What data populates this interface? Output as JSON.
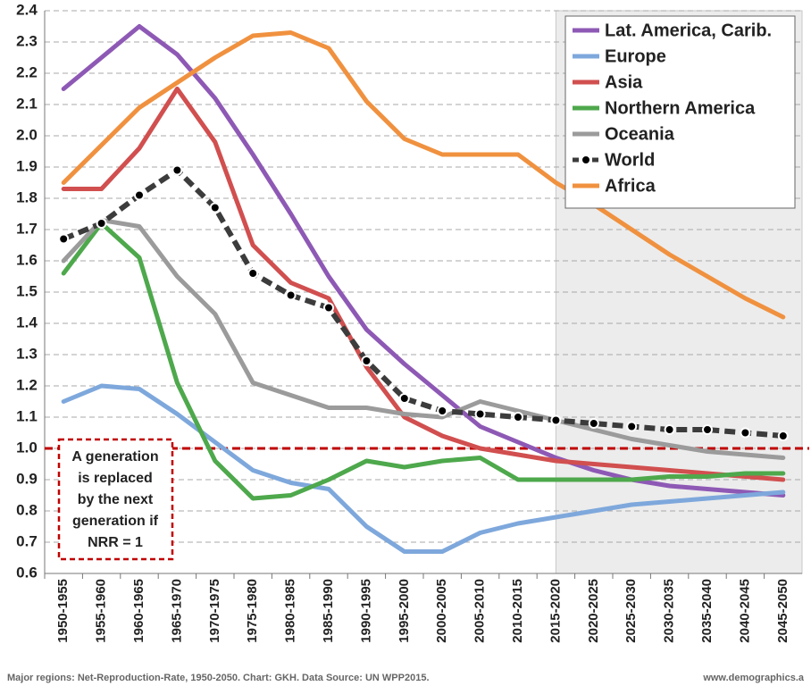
{
  "chart_data": {
    "type": "line",
    "categories": [
      "1950-1955",
      "1955-1960",
      "1960-1965",
      "1965-1970",
      "1970-1975",
      "1975-1980",
      "1980-1985",
      "1985-1990",
      "1990-1995",
      "1995-2000",
      "2000-2005",
      "2005-2010",
      "2010-2015",
      "2015-2020",
      "2020-2025",
      "2025-2030",
      "2030-2035",
      "2035-2040",
      "2040-2045",
      "2045-2050"
    ],
    "ylim": [
      0.6,
      2.4
    ],
    "yticks": [
      0.6,
      0.7,
      0.8,
      0.9,
      {
        "value": 1,
        "label": "1.0"
      },
      1.1,
      1.2,
      1.3,
      1.4,
      1.5,
      1.6,
      1.7,
      1.8,
      1.9,
      {
        "value": 2,
        "label": "2.0"
      },
      2.1,
      2.2,
      2.3,
      2.4
    ],
    "grid": true,
    "legend": "top-right",
    "reference_line": {
      "value": 1,
      "color": "#c00000"
    },
    "annotation": [
      "A generation",
      "is replaced",
      "by the next",
      "generation if",
      "NRR = 1"
    ],
    "footer": "Major regions: Net-Reproduction-Rate, 1950-2050. Chart: GKH. Data Source: UN WPP2015.",
    "source": "www.demographics.a",
    "series": [
      {
        "name": "Lat. America, Carib.",
        "color": "#8e59b5",
        "values": [
          2.15,
          2.25,
          2.35,
          2.26,
          2.12,
          1.94,
          1.75,
          1.55,
          1.38,
          1.27,
          1.17,
          1.07,
          1.02,
          0.97,
          0.93,
          0.9,
          0.88,
          0.87,
          0.86,
          0.85
        ]
      },
      {
        "name": "Europe",
        "color": "#7ea8dc",
        "values": [
          1.15,
          1.2,
          1.19,
          1.11,
          1.02,
          0.93,
          0.89,
          0.87,
          0.75,
          0.67,
          0.67,
          0.73,
          0.76,
          0.78,
          0.8,
          0.82,
          0.83,
          0.84,
          0.85,
          0.86
        ]
      },
      {
        "name": "Asia",
        "color": "#d14f4f",
        "values": [
          1.83,
          1.83,
          1.96,
          2.15,
          1.98,
          1.65,
          1.53,
          1.48,
          1.26,
          1.1,
          1.04,
          1.0,
          0.98,
          0.96,
          0.95,
          0.94,
          0.93,
          0.92,
          0.91,
          0.9
        ]
      },
      {
        "name": "Northern America",
        "color": "#4ea84c",
        "values": [
          1.56,
          1.72,
          1.61,
          1.21,
          0.96,
          0.84,
          0.85,
          0.9,
          0.96,
          0.94,
          0.96,
          0.97,
          0.9,
          0.9,
          0.9,
          0.9,
          0.91,
          0.91,
          0.92,
          0.92
        ]
      },
      {
        "name": "Oceania",
        "color": "#9b9b9b",
        "values": [
          1.6,
          1.73,
          1.71,
          1.55,
          1.43,
          1.21,
          1.17,
          1.13,
          1.13,
          1.11,
          1.1,
          1.15,
          1.12,
          1.09,
          1.06,
          1.03,
          1.01,
          0.99,
          0.98,
          0.97
        ]
      },
      {
        "name": "World",
        "color": "#3c3c3c",
        "line_style": "dash",
        "marker": "circle",
        "values": [
          1.67,
          1.72,
          1.81,
          1.89,
          1.77,
          1.56,
          1.49,
          1.45,
          1.28,
          1.16,
          1.12,
          1.11,
          1.1,
          1.09,
          1.08,
          1.07,
          1.06,
          1.06,
          1.05,
          1.04
        ]
      },
      {
        "name": "Africa",
        "color": "#f0913f",
        "values": [
          1.85,
          1.97,
          2.09,
          2.17,
          2.25,
          2.32,
          2.33,
          2.28,
          2.11,
          1.99,
          1.94,
          1.94,
          1.94,
          1.85,
          1.78,
          1.7,
          1.62,
          1.55,
          1.48,
          1.42
        ]
      }
    ]
  }
}
